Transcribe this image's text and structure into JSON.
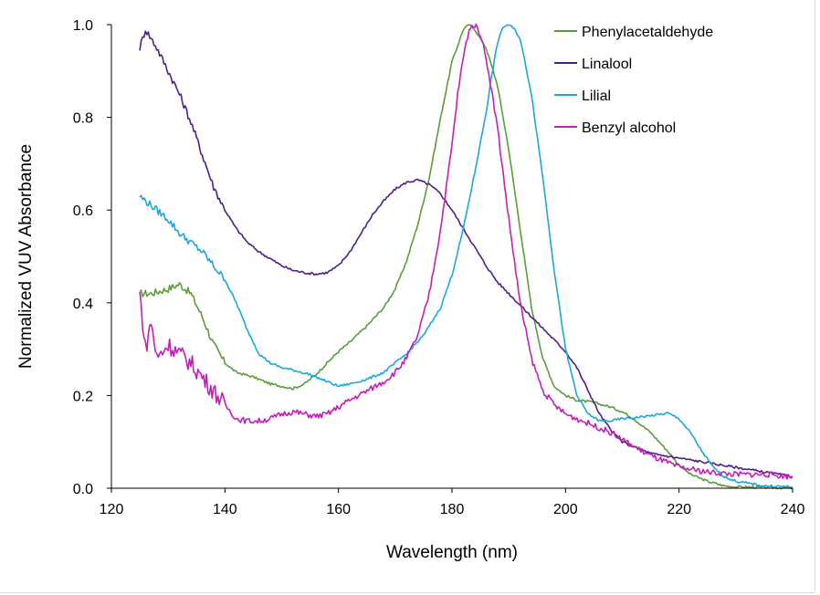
{
  "chart_data": {
    "type": "line",
    "title": "",
    "xlabel": "Wavelength (nm)",
    "ylabel": "Normalized VUV Absorbance",
    "xlim": [
      120,
      240
    ],
    "ylim": [
      0,
      1.0
    ],
    "xticks": [
      120,
      140,
      160,
      180,
      200,
      220,
      240
    ],
    "xtick_labels": [
      "120",
      "140",
      "160",
      "180",
      "200",
      "220",
      "240"
    ],
    "yticks": [
      0,
      0.2,
      0.4,
      0.6,
      0.8,
      1.0
    ],
    "ytick_labels": [
      "0.0",
      "0.2",
      "0.4",
      "0.6",
      "0.8",
      "1.0"
    ],
    "grid": false,
    "legend_position": "top-right",
    "series": [
      {
        "name": "Phenylacetaldehyde",
        "color": "#5a9e3a",
        "x": [
          125,
          127,
          130,
          132,
          134,
          136,
          138,
          140,
          142,
          145,
          148,
          150,
          152,
          154,
          156,
          158,
          160,
          162,
          165,
          168,
          170,
          172,
          174,
          176,
          178,
          180,
          182,
          183,
          184,
          186,
          188,
          190,
          192,
          194,
          196,
          198,
          200,
          202,
          205,
          208,
          210,
          212,
          215,
          218,
          220,
          222,
          225,
          228,
          230,
          235,
          240
        ],
        "y": [
          0.42,
          0.42,
          0.43,
          0.44,
          0.42,
          0.37,
          0.31,
          0.27,
          0.25,
          0.24,
          0.225,
          0.22,
          0.215,
          0.225,
          0.245,
          0.27,
          0.295,
          0.315,
          0.35,
          0.39,
          0.43,
          0.49,
          0.57,
          0.67,
          0.8,
          0.92,
          0.99,
          1.0,
          0.99,
          0.95,
          0.87,
          0.73,
          0.56,
          0.39,
          0.28,
          0.22,
          0.2,
          0.19,
          0.185,
          0.175,
          0.165,
          0.15,
          0.12,
          0.08,
          0.05,
          0.03,
          0.015,
          0.005,
          0.003,
          0.002,
          0.0
        ]
      },
      {
        "name": "Linalool",
        "color": "#4e1f8c",
        "x": [
          125,
          126,
          127,
          128,
          130,
          132,
          134,
          136,
          138,
          140,
          142,
          144,
          146,
          148,
          150,
          152,
          154,
          156,
          158,
          160,
          162,
          164,
          166,
          168,
          170,
          172,
          174,
          176,
          178,
          180,
          182,
          184,
          186,
          188,
          190,
          192,
          194,
          196,
          198,
          200,
          202,
          204,
          206,
          208,
          210,
          215,
          220,
          225,
          230,
          235,
          240
        ],
        "y": [
          0.95,
          0.99,
          0.97,
          0.95,
          0.9,
          0.85,
          0.79,
          0.72,
          0.65,
          0.6,
          0.56,
          0.53,
          0.51,
          0.495,
          0.48,
          0.47,
          0.465,
          0.462,
          0.465,
          0.48,
          0.51,
          0.55,
          0.59,
          0.62,
          0.645,
          0.66,
          0.665,
          0.655,
          0.635,
          0.6,
          0.56,
          0.52,
          0.48,
          0.445,
          0.42,
          0.395,
          0.37,
          0.345,
          0.32,
          0.295,
          0.26,
          0.21,
          0.16,
          0.125,
          0.1,
          0.075,
          0.065,
          0.055,
          0.045,
          0.035,
          0.025
        ]
      },
      {
        "name": "Lilial",
        "color": "#1aa7e0",
        "x": [
          125,
          127,
          130,
          132,
          134,
          136,
          138,
          140,
          142,
          144,
          146,
          148,
          150,
          152,
          155,
          158,
          160,
          162,
          165,
          168,
          170,
          172,
          175,
          178,
          180,
          182,
          184,
          186,
          187,
          188,
          189,
          190,
          191,
          192,
          194,
          196,
          198,
          200,
          202,
          204,
          206,
          208,
          210,
          212,
          214,
          216,
          218,
          220,
          222,
          224,
          226,
          228,
          230,
          235,
          240
        ],
        "y": [
          0.63,
          0.61,
          0.58,
          0.55,
          0.53,
          0.51,
          0.48,
          0.45,
          0.4,
          0.34,
          0.29,
          0.27,
          0.26,
          0.255,
          0.245,
          0.23,
          0.22,
          0.225,
          0.235,
          0.25,
          0.27,
          0.29,
          0.33,
          0.39,
          0.46,
          0.56,
          0.68,
          0.81,
          0.89,
          0.96,
          0.995,
          1.0,
          0.99,
          0.97,
          0.85,
          0.67,
          0.47,
          0.3,
          0.2,
          0.16,
          0.145,
          0.145,
          0.15,
          0.152,
          0.155,
          0.158,
          0.162,
          0.15,
          0.12,
          0.08,
          0.045,
          0.025,
          0.015,
          0.005,
          0.003
        ]
      },
      {
        "name": "Benzyl alcohol",
        "color": "#c41eb9",
        "x": [
          125,
          126,
          127,
          128,
          130,
          132,
          134,
          136,
          138,
          140,
          142,
          144,
          146,
          148,
          150,
          152,
          154,
          156,
          158,
          160,
          162,
          165,
          168,
          170,
          172,
          174,
          176,
          178,
          180,
          181,
          182,
          183,
          184,
          185,
          186,
          188,
          190,
          192,
          194,
          196,
          198,
          200,
          202,
          205,
          208,
          210,
          212,
          215,
          218,
          220,
          225,
          230,
          235,
          240
        ],
        "y": [
          0.42,
          0.3,
          0.36,
          0.28,
          0.31,
          0.29,
          0.27,
          0.24,
          0.21,
          0.18,
          0.15,
          0.145,
          0.145,
          0.15,
          0.16,
          0.165,
          0.16,
          0.155,
          0.16,
          0.175,
          0.19,
          0.21,
          0.23,
          0.25,
          0.28,
          0.33,
          0.42,
          0.56,
          0.74,
          0.85,
          0.93,
          0.99,
          1.0,
          0.98,
          0.93,
          0.78,
          0.58,
          0.4,
          0.28,
          0.21,
          0.18,
          0.16,
          0.15,
          0.135,
          0.12,
          0.105,
          0.09,
          0.07,
          0.055,
          0.045,
          0.035,
          0.03,
          0.03,
          0.025
        ]
      }
    ]
  }
}
